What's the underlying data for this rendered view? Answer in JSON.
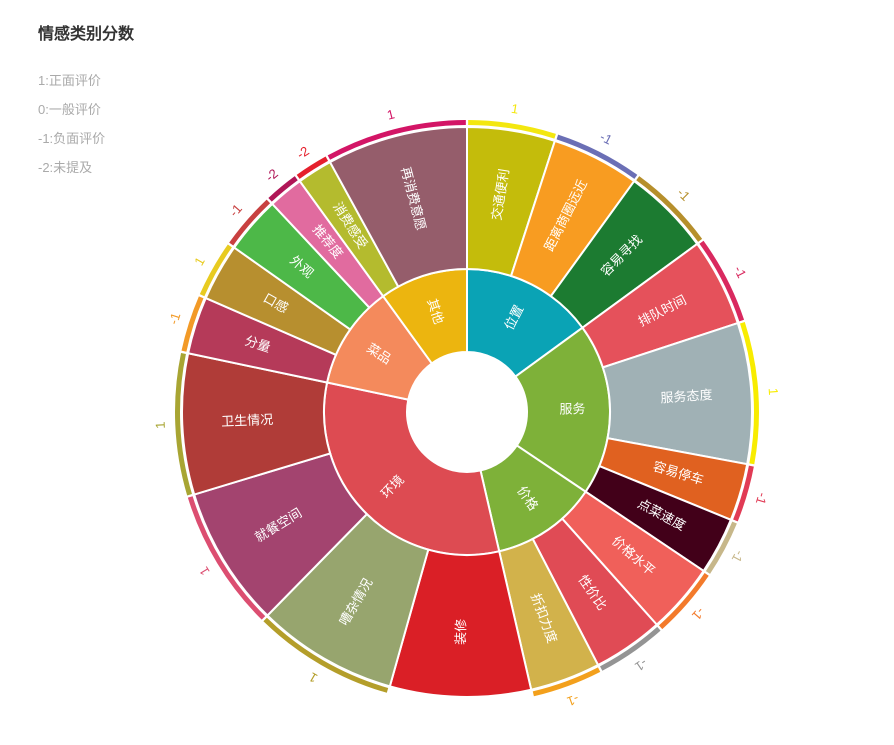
{
  "title": "情感类别分数",
  "notes": [
    "1:正面评价",
    "0:一般评价",
    "-1:负面评价",
    "-2:未提及"
  ],
  "chart_data": {
    "type": "sunburst",
    "title": "情感类别分数",
    "categories": [
      {
        "name": "位置",
        "color": "#0aa3b5",
        "children": [
          {
            "name": "交通便利",
            "value": 1,
            "color": "#c4bc0b",
            "score": "1",
            "ring": "#f3e70f"
          },
          {
            "name": "距离商圈远近",
            "value": 1,
            "color": "#f89c21",
            "score": "-1",
            "ring": "#6b6fb5"
          },
          {
            "name": "容易寻找",
            "value": 1,
            "color": "#1c7b31",
            "score": "-1",
            "ring": "#b68f2c"
          }
        ]
      },
      {
        "name": "服务",
        "color": "#7eb139",
        "children": [
          {
            "name": "排队时间",
            "value": 1,
            "color": "#e5515b",
            "score": "-1",
            "ring": "#d9295f"
          },
          {
            "name": "服务态度",
            "value": 1.6,
            "color": "#a0b1b5",
            "score": "1",
            "ring": "#f8ec00"
          },
          {
            "name": "容易停车",
            "value": 0.65,
            "color": "#e06120",
            "score": "-1",
            "ring": "#e13b55"
          },
          {
            "name": "点菜速度",
            "value": 0.65,
            "color": "#420019",
            "score": "-1",
            "ring": "#c7b78a"
          }
        ]
      },
      {
        "name": "价格",
        "color": "#7eb139",
        "children": [
          {
            "name": "价格水平",
            "value": 0.8,
            "color": "#f0605a",
            "score": "-1",
            "ring": "#f37a2b"
          },
          {
            "name": "性价比",
            "value": 0.8,
            "color": "#e04b55",
            "score": "-1",
            "ring": "#949494"
          },
          {
            "name": "折扣力度",
            "value": 0.8,
            "color": "#d2b24b",
            "score": "-1",
            "ring": "#f3a01c"
          }
        ]
      },
      {
        "name": "环境",
        "color": "#dd4b52",
        "children": [
          {
            "name": "装修",
            "value": 1.6,
            "color": "#da1f26",
            "score": "",
            "ring": ""
          },
          {
            "name": "嘈杂情况",
            "value": 1.6,
            "color": "#97a56e",
            "score": "1",
            "ring": "#b49e2a"
          },
          {
            "name": "就餐空间",
            "value": 1.6,
            "color": "#a3446f",
            "score": "1",
            "ring": "#dc4e71"
          },
          {
            "name": "卫生情况",
            "value": 1.6,
            "color": "#b03c38",
            "score": "1",
            "ring": "#a8a533"
          }
        ]
      },
      {
        "name": "菜品",
        "color": "#f48a5c",
        "children": [
          {
            "name": "分量",
            "value": 0.65,
            "color": "#b53a59",
            "score": "-1",
            "ring": "#f29a27"
          },
          {
            "name": "口感",
            "value": 0.65,
            "color": "#b78f2f",
            "score": "1",
            "ring": "#e8cb20"
          },
          {
            "name": "外观",
            "value": 0.65,
            "color": "#4db848",
            "score": "-1",
            "ring": "#c84040"
          },
          {
            "name": "推荐度",
            "value": 0.4,
            "color": "#e16b9f",
            "score": "-2",
            "ring": "#b01657"
          }
        ]
      },
      {
        "name": "其他",
        "color": "#ecb50f",
        "children": [
          {
            "name": "消费感受",
            "value": 0.4,
            "color": "#b4bb2e",
            "score": "-2",
            "ring": "#e5202d"
          },
          {
            "name": "再消费意愿",
            "value": 1.6,
            "color": "#955d6b",
            "score": "1",
            "ring": "#d31566"
          }
        ]
      }
    ]
  }
}
